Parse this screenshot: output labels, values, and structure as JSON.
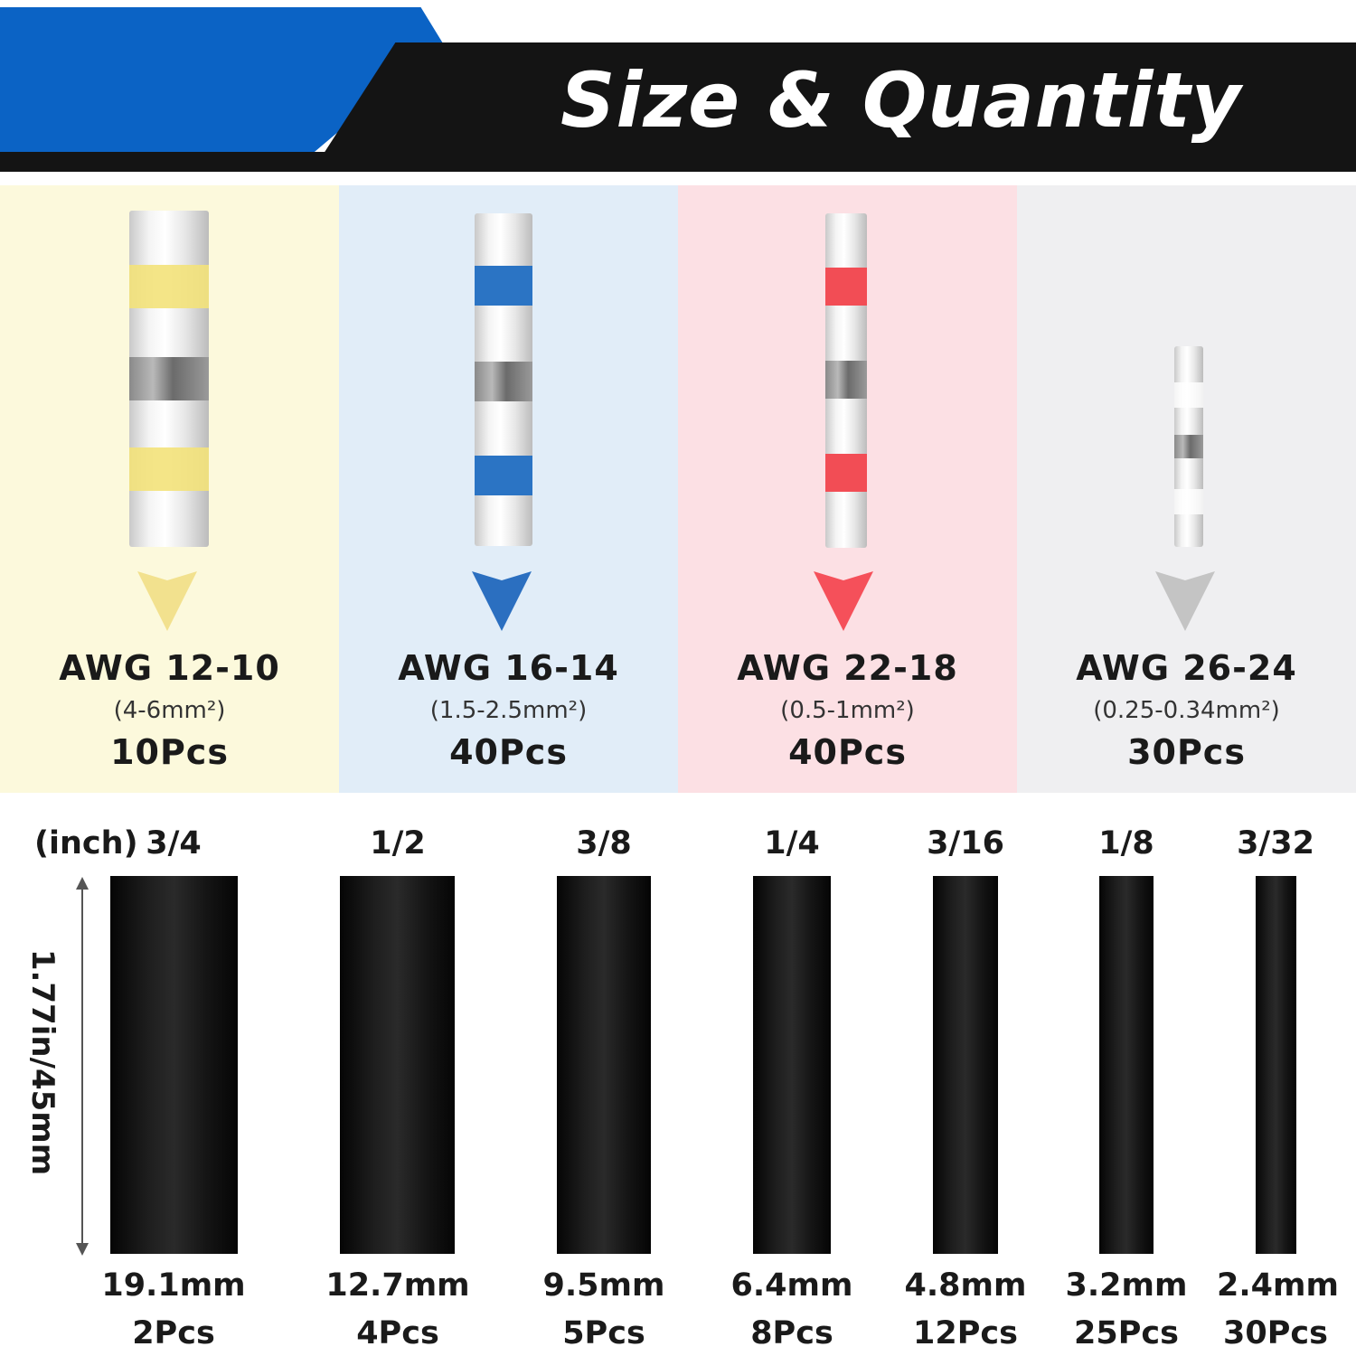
{
  "header": {
    "title": "Size & Quantity",
    "colors": {
      "blue": "#0b63c5",
      "black": "#141414"
    }
  },
  "connectors": [
    {
      "awg": "AWG 12-10",
      "area": "(4-6mm²)",
      "qty": "10Pcs",
      "color": "#f3e27a",
      "bg": "#fcf9dc",
      "arrow_color": "#f2e18e",
      "icon": "butt-connector-yellow-icon"
    },
    {
      "awg": "AWG 16-14",
      "area": "(1.5-2.5mm²)",
      "qty": "40Pcs",
      "color": "#2b74c4",
      "bg": "#e1edf8",
      "arrow_color": "#2b6fc0",
      "icon": "butt-connector-blue-icon"
    },
    {
      "awg": "AWG 22-18",
      "area": "(0.5-1mm²)",
      "qty": "40Pcs",
      "color": "#f24d55",
      "bg": "#fce0e4",
      "arrow_color": "#f5505a",
      "icon": "butt-connector-red-icon"
    },
    {
      "awg": "AWG 26-24",
      "area": "(0.25-0.34mm²)",
      "qty": "30Pcs",
      "color": "#f5f5f5",
      "bg": "#efeff1",
      "arrow_color": "#c4c4c4",
      "icon": "butt-connector-clear-icon"
    }
  ],
  "tubing": {
    "unit_label": "(inch)",
    "length_label": "1.77in/45mm",
    "color": "#141414",
    "items": [
      {
        "size": "3/4",
        "diameter": "19.1mm",
        "qty": "2Pcs"
      },
      {
        "size": "1/2",
        "diameter": "12.7mm",
        "qty": "4Pcs"
      },
      {
        "size": "3/8",
        "diameter": "9.5mm",
        "qty": "5Pcs"
      },
      {
        "size": "1/4",
        "diameter": "6.4mm",
        "qty": "8Pcs"
      },
      {
        "size": "3/16",
        "diameter": "4.8mm",
        "qty": "12Pcs"
      },
      {
        "size": "1/8",
        "diameter": "3.2mm",
        "qty": "25Pcs"
      },
      {
        "size": "3/32",
        "diameter": "2.4mm",
        "qty": "30Pcs"
      }
    ]
  }
}
